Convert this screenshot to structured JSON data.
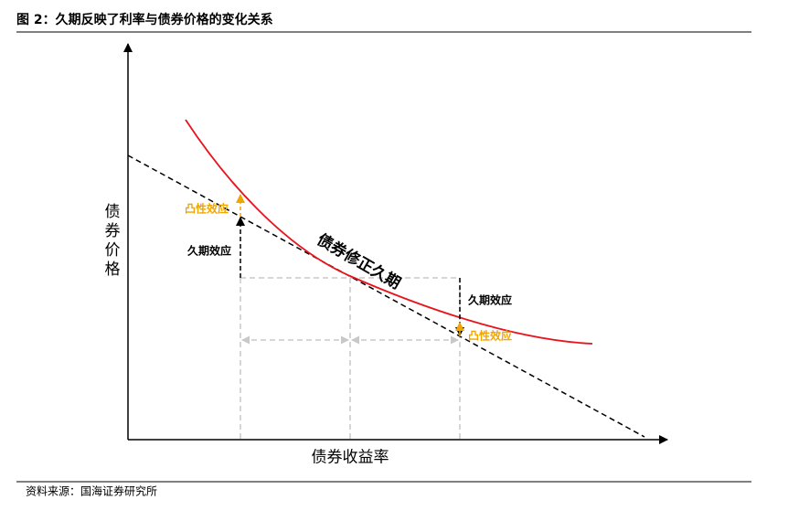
{
  "header": {
    "title": "图 2：久期反映了利率与债券价格的变化关系"
  },
  "diagram": {
    "y_axis_label": "债券价格",
    "x_axis_label": "债券收益率",
    "tangent_label": "债券修正久期",
    "left_convexity": "凸性效应",
    "left_duration": "久期效应",
    "right_duration": "久期效应",
    "right_convexity": "凸性效应"
  },
  "footer": {
    "source": "资料来源：国海证券研究所"
  }
}
